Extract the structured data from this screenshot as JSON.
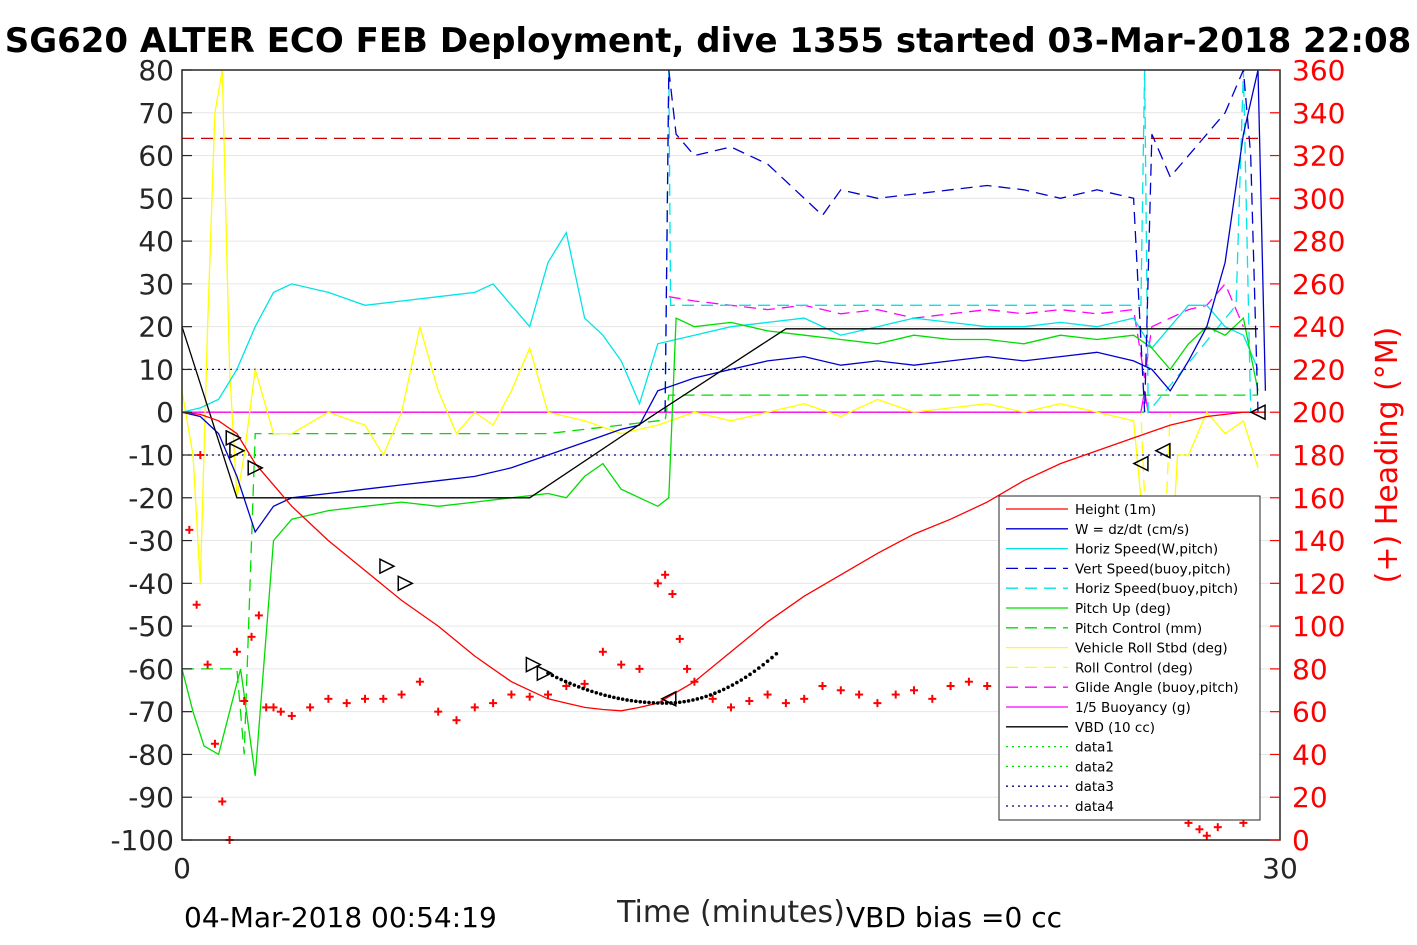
{
  "chart_data": {
    "type": "line",
    "title": "SG620 ALTER ECO FEB Deployment, dive 1355 started 03-Mar-2018 22:08",
    "xlabel": "Time (minutes)",
    "ylabel_right": "(+) Heading (°M)",
    "xlim": [
      0,
      30
    ],
    "ylim_left": [
      -100,
      80
    ],
    "ylim_right": [
      0,
      360
    ],
    "x_ticks": [
      "0",
      "30"
    ],
    "y_ticks_left": [
      "80",
      "70",
      "60",
      "50",
      "40",
      "30",
      "20",
      "10",
      "0",
      "-10",
      "-20",
      "-30",
      "-40",
      "-50",
      "-60",
      "-70",
      "-80",
      "-90",
      "-100"
    ],
    "y_ticks_right": [
      "360",
      "340",
      "320",
      "300",
      "280",
      "260",
      "240",
      "220",
      "200",
      "180",
      "160",
      "140",
      "120",
      "100",
      "80",
      "60",
      "40",
      "20",
      "0"
    ],
    "grid": "horizontal",
    "legend": "lower-right",
    "footer_left": "04-Mar-2018 00:54:19",
    "footer_right": "VBD bias =0 cc",
    "legend_entries": [
      {
        "name": "Height (1m)",
        "color": "#ff0000",
        "dash": "solid"
      },
      {
        "name": "W = dz/dt (cm/s)",
        "color": "#0000cc",
        "dash": "solid"
      },
      {
        "name": "Horiz Speed(W,pitch)",
        "color": "#00e5e5",
        "dash": "solid"
      },
      {
        "name": "Vert Speed(buoy,pitch)",
        "color": "#0000cc",
        "dash": "dashed"
      },
      {
        "name": "Horiz Speed(buoy,pitch)",
        "color": "#00e5e5",
        "dash": "dashed"
      },
      {
        "name": "Pitch Up (deg)",
        "color": "#00dd00",
        "dash": "solid"
      },
      {
        "name": "Pitch Control (mm)",
        "color": "#00dd00",
        "dash": "dashed"
      },
      {
        "name": "Vehicle Roll Stbd (deg)",
        "color": "#ffff00",
        "dash": "solid"
      },
      {
        "name": "Roll Control (deg)",
        "color": "#ffff00",
        "dash": "dashed"
      },
      {
        "name": "Glide Angle (buoy,pitch)",
        "color": "#ff00ff",
        "dash": "dashed"
      },
      {
        "name": "1/5 Buoyancy (g)",
        "color": "#ff00ff",
        "dash": "solid"
      },
      {
        "name": "VBD (10 cc)",
        "color": "#000000",
        "dash": "solid"
      },
      {
        "name": "data1",
        "color": "#00dd00",
        "dash": "dotted"
      },
      {
        "name": "data2",
        "color": "#00dd00",
        "dash": "dotted"
      },
      {
        "name": "data3",
        "color": "#000080",
        "dash": "dotted"
      },
      {
        "name": "data4",
        "color": "#000080",
        "dash": "dotted"
      }
    ],
    "series": {
      "height": {
        "x": [
          0,
          0.5,
          1,
          1.5,
          2,
          3,
          4,
          5,
          6,
          7,
          8,
          9,
          9.5,
          10,
          10.5,
          11,
          11.5,
          12,
          12.5,
          13,
          14,
          15,
          16,
          17,
          18,
          19,
          20,
          21,
          22,
          23,
          24,
          25,
          26,
          27,
          28,
          29,
          29.6
        ],
        "y": [
          0,
          -0.5,
          -2,
          -5,
          -12,
          -22,
          -30,
          -37,
          -44,
          -50,
          -57,
          -63,
          -65,
          -67,
          -68,
          -69,
          -69.5,
          -69.8,
          -69,
          -68,
          -63,
          -56,
          -49,
          -43,
          -38,
          -33,
          -28.5,
          -25,
          -21,
          -16,
          -12,
          -9,
          -6,
          -3,
          -1,
          0,
          0
        ]
      },
      "w": {
        "x": [
          0,
          0.5,
          1,
          1.5,
          2,
          2.5,
          3,
          4,
          5,
          6,
          7,
          8,
          9,
          10,
          11,
          12,
          12.5,
          13,
          14,
          15,
          16,
          17,
          18,
          19,
          20,
          21,
          22,
          23,
          24,
          25,
          26,
          26.5,
          27,
          27.5,
          28,
          28.5,
          29,
          29.4,
          29.6
        ],
        "y": [
          0,
          -1,
          -5,
          -15,
          -28,
          -22,
          -20,
          -19,
          -18,
          -17,
          -16,
          -15,
          -13,
          -10,
          -7,
          -4,
          -3,
          5,
          8,
          10,
          12,
          13,
          11,
          12,
          11,
          12,
          13,
          12,
          13,
          14,
          12,
          10,
          5,
          12,
          20,
          35,
          65,
          80,
          5
        ]
      },
      "horiz_speed": {
        "x": [
          0,
          0.5,
          1,
          1.5,
          2,
          2.5,
          3,
          4,
          5,
          6,
          7,
          8,
          8.5,
          9,
          9.5,
          10,
          10.5,
          11,
          11.5,
          12,
          12.5,
          13,
          14,
          15,
          16,
          17,
          18,
          19,
          20,
          21,
          22,
          23,
          24,
          25,
          26,
          26.5,
          27,
          27.5,
          28,
          28.5,
          29,
          29.4
        ],
        "y": [
          0,
          1,
          3,
          10,
          20,
          28,
          30,
          28,
          25,
          26,
          27,
          28,
          30,
          25,
          20,
          35,
          42,
          22,
          18,
          12,
          2,
          16,
          18,
          20,
          21,
          22,
          18,
          20,
          22,
          21,
          20,
          20,
          21,
          20,
          22,
          15,
          20,
          25,
          25,
          20,
          18,
          10
        ]
      },
      "vert_speed_buoy": {
        "x": [
          13.2,
          13.3,
          13.5,
          14,
          15,
          16,
          17,
          17.5,
          18,
          19,
          20,
          21,
          22,
          23,
          24,
          25,
          26,
          26.3,
          26.5,
          27,
          27.5,
          28,
          28.5,
          29,
          29.2,
          29.4
        ],
        "y": [
          0,
          80,
          65,
          60,
          62,
          58,
          50,
          46,
          52,
          50,
          51,
          52,
          53,
          52,
          50,
          52,
          50,
          0,
          65,
          55,
          60,
          65,
          70,
          80,
          60,
          0
        ]
      },
      "horiz_speed_buoy": {
        "x": [
          13.2,
          13.3,
          13.35,
          26.2,
          26.3,
          26.4,
          28.8,
          29.0,
          29.2
        ],
        "y": [
          0,
          80,
          25,
          25,
          80,
          0,
          25,
          80,
          0
        ]
      },
      "pitch": {
        "x": [
          0,
          0.3,
          0.6,
          1,
          1.3,
          1.6,
          2,
          2.5,
          3,
          4,
          5,
          6,
          7,
          8,
          9,
          10,
          10.5,
          11,
          11.5,
          12,
          12.5,
          13,
          13.3,
          13.5,
          14,
          15,
          16,
          17,
          18,
          19,
          20,
          21,
          22,
          23,
          24,
          25,
          26,
          26.5,
          27,
          27.5,
          28,
          28.5,
          29,
          29.4
        ],
        "y": [
          -60,
          -70,
          -78,
          -80,
          -70,
          -60,
          -85,
          -30,
          -25,
          -23,
          -22,
          -21,
          -22,
          -21,
          -20,
          -19,
          -20,
          -15,
          -12,
          -18,
          -20,
          -22,
          -20,
          22,
          20,
          21,
          19,
          18,
          17,
          16,
          18,
          17,
          17,
          16,
          18,
          17,
          18,
          15,
          10,
          16,
          20,
          18,
          22,
          5
        ]
      },
      "pitch_control": {
        "x": [
          0,
          1.5,
          1.7,
          2,
          3,
          4,
          5,
          6,
          7,
          8,
          9,
          10,
          11,
          12,
          13,
          13.2,
          13.3,
          14,
          29.4
        ],
        "y": [
          -60,
          -60,
          -80,
          -5,
          -5,
          -5,
          -5,
          -5,
          -5,
          -5,
          -5,
          -5,
          -4,
          -3,
          -2,
          -2,
          4,
          4,
          4
        ]
      },
      "roll": {
        "x": [
          0,
          0.3,
          0.5,
          0.7,
          0.9,
          1.1,
          1.3,
          1.5,
          1.7,
          2,
          2.5,
          3,
          4,
          5,
          5.5,
          6,
          6.5,
          7,
          7.5,
          8,
          8.5,
          9,
          9.5,
          10,
          11,
          12,
          13,
          14,
          15,
          16,
          17,
          18,
          19,
          20,
          21,
          22,
          23,
          24,
          25,
          26,
          26.2,
          26.4,
          26.6,
          26.8,
          27,
          27.2,
          27.5,
          28,
          28.5,
          29,
          29.4
        ],
        "y": [
          5,
          -10,
          -40,
          20,
          70,
          80,
          10,
          -20,
          -10,
          10,
          -5,
          -5,
          0,
          -3,
          -10,
          0,
          20,
          5,
          -5,
          0,
          -3,
          5,
          15,
          0,
          -2,
          -5,
          -3,
          0,
          -2,
          0,
          2,
          -1,
          3,
          0,
          1,
          2,
          0,
          2,
          0,
          -2,
          -20,
          -38,
          -35,
          -30,
          -40,
          -10,
          -10,
          0,
          -5,
          -2,
          -13
        ]
      },
      "roll_control": {
        "x": [
          0,
          26.2,
          26.4,
          26.8,
          27,
          29.4
        ],
        "y": [
          0,
          0,
          -40,
          -40,
          0,
          0
        ]
      },
      "glide_angle": {
        "x": [
          13.3,
          14,
          15,
          16,
          17,
          18,
          19,
          20,
          21,
          22,
          23,
          24,
          25,
          26,
          26.3,
          26.5,
          27,
          27.5,
          28,
          28.5,
          29
        ],
        "y": [
          27,
          26,
          25,
          24,
          25,
          23,
          24,
          22,
          23,
          24,
          23,
          24,
          23,
          24,
          8,
          20,
          22,
          24,
          25,
          30,
          20
        ]
      },
      "buoyancy": {
        "x": [
          0,
          12.9,
          13.0,
          13.1,
          13.2,
          26.2,
          26.3,
          26.4,
          29.4
        ],
        "y": [
          0,
          0,
          0,
          0,
          0,
          0,
          5,
          0,
          0
        ]
      },
      "vbd": {
        "x": [
          0,
          1.5,
          9.5,
          13.0,
          16.5,
          29.4
        ],
        "y": [
          20,
          -20,
          -20,
          0,
          19.5,
          19.5
        ]
      },
      "data1_2": {
        "x": [
          0,
          29.4
        ],
        "y": [
          0,
          0
        ]
      },
      "data3": {
        "x": [
          0,
          29.4
        ],
        "y": [
          10,
          10
        ]
      },
      "data4": {
        "x": [
          0,
          29.4
        ],
        "y": [
          -10,
          -10
        ]
      },
      "heading": {
        "x": [
          0.2,
          0.4,
          0.5,
          0.7,
          0.9,
          1.1,
          1.3,
          1.5,
          1.7,
          1.9,
          2.1,
          2.3,
          2.5,
          2.7,
          3,
          3.5,
          4,
          4.5,
          5,
          5.5,
          6,
          6.5,
          7,
          7.5,
          8,
          8.5,
          9,
          9.5,
          10,
          10.5,
          11,
          11.5,
          12,
          12.5,
          13,
          13.2,
          13.4,
          13.6,
          13.8,
          14,
          14.5,
          15,
          15.5,
          16,
          16.5,
          17,
          17.5,
          18,
          18.5,
          19,
          19.5,
          20,
          20.5,
          21,
          21.5,
          22,
          22.5,
          23,
          23.5,
          24,
          24.5,
          25,
          25.5,
          26,
          26.3,
          26.5,
          26.8,
          27,
          27.3,
          27.5,
          27.8,
          28,
          28.3,
          28.5,
          28.8,
          29,
          29.2
        ],
        "y": [
          145,
          110,
          180,
          82,
          45,
          18,
          0,
          88,
          65,
          95,
          105,
          62,
          62,
          60,
          58,
          62,
          66,
          64,
          66,
          66,
          68,
          74,
          60,
          56,
          62,
          64,
          68,
          67,
          68,
          72,
          73,
          88,
          82,
          80,
          120,
          124,
          115,
          94,
          80,
          74,
          66,
          62,
          65,
          68,
          64,
          66,
          72,
          70,
          68,
          64,
          68,
          70,
          66,
          72,
          74,
          72,
          66,
          74,
          77,
          82,
          84,
          88,
          92,
          88,
          76,
          50,
          24,
          15,
          12,
          8,
          5,
          2,
          6,
          12,
          14,
          8,
          20
        ]
      },
      "heading_ref": {
        "x": [
          0,
          29.4
        ],
        "y": [
          64,
          64
        ]
      }
    },
    "markers": {
      "descent": {
        "x": [
          1.4,
          1.5,
          2.0,
          5.6,
          6.1,
          9.6,
          9.9
        ],
        "y": [
          -6,
          -9,
          -13,
          -36,
          -40,
          -59,
          -61
        ]
      },
      "ascent": {
        "x": [
          13.3,
          26.2,
          26.8,
          29.4
        ],
        "y": [
          -67,
          -12,
          -9,
          0
        ]
      }
    }
  }
}
